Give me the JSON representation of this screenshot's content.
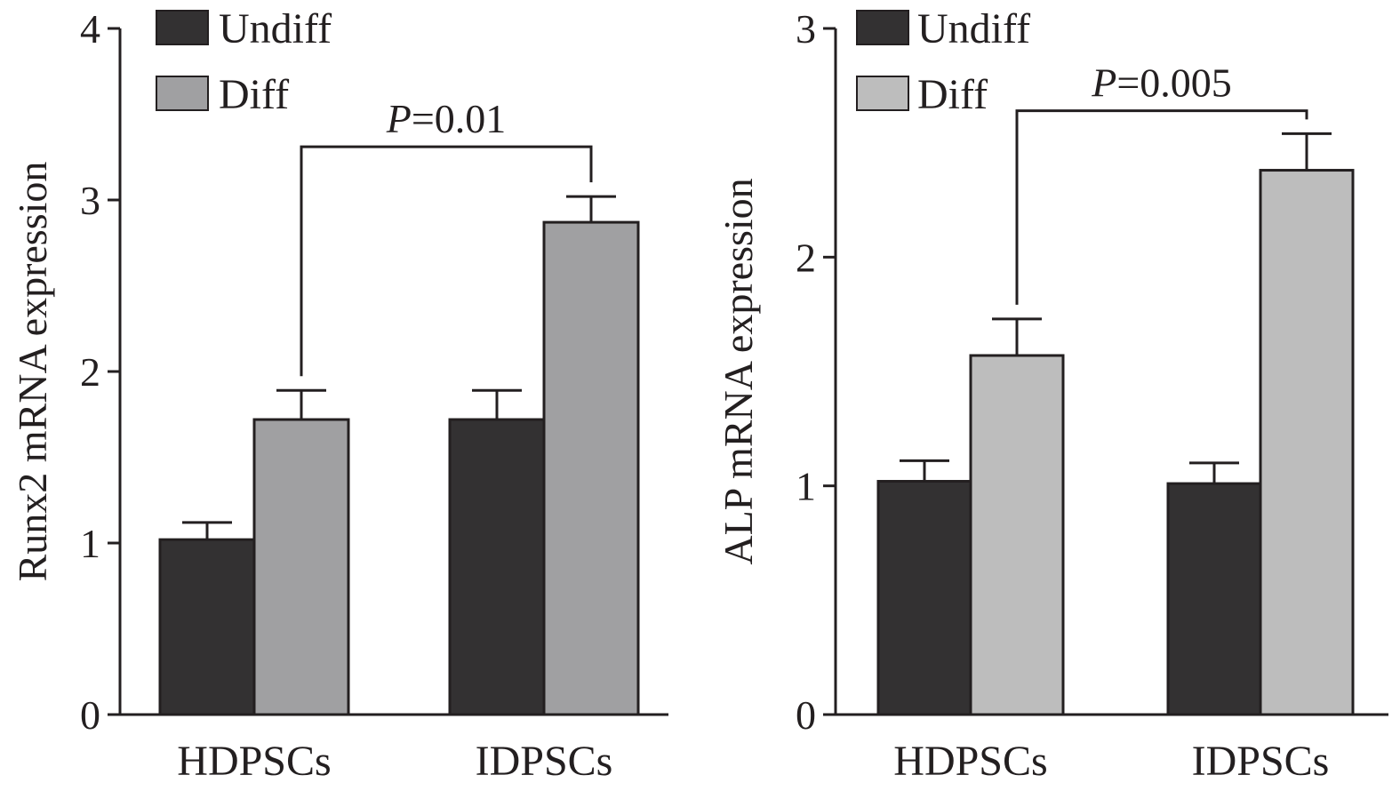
{
  "colors": {
    "undiff": "#333132",
    "diff_panel1": "#a0a0a2",
    "diff_panel2": "#bdbdbd",
    "ink": "#231f20",
    "background": "#ffffff"
  },
  "chart_data": [
    {
      "type": "bar",
      "title": "",
      "xlabel": "",
      "ylabel": "Runx2 mRNA expression",
      "ylim": [
        0,
        4
      ],
      "yticks": [
        "0",
        "1",
        "2",
        "3",
        "4"
      ],
      "categories": [
        "HDPSCs",
        "IDPSCs"
      ],
      "series": [
        {
          "name": "Undiff",
          "values": [
            1.02,
            1.72
          ],
          "errors": [
            0.1,
            0.17
          ]
        },
        {
          "name": "Diff",
          "values": [
            1.72,
            2.87
          ],
          "errors": [
            0.17,
            0.15
          ]
        }
      ],
      "legend": {
        "position": "top-left",
        "entries": [
          "Undiff",
          "Diff"
        ]
      },
      "annotation": {
        "p_symbol": "P",
        "p_value": "=0.01",
        "from": {
          "category": 0,
          "series": 1
        },
        "to": {
          "category": 1,
          "series": 1
        },
        "bracket_level": 3.31
      },
      "grid": false
    },
    {
      "type": "bar",
      "title": "",
      "xlabel": "",
      "ylabel": "ALP mRNA expression",
      "ylim": [
        0,
        3
      ],
      "yticks": [
        "0",
        "1",
        "2",
        "3"
      ],
      "categories": [
        "HDPSCs",
        "IDPSCs"
      ],
      "series": [
        {
          "name": "Undiff",
          "values": [
            1.02,
            1.01
          ],
          "errors": [
            0.09,
            0.09
          ]
        },
        {
          "name": "Diff",
          "values": [
            1.57,
            2.38
          ],
          "errors": [
            0.16,
            0.16
          ]
        }
      ],
      "legend": {
        "position": "top-left",
        "entries": [
          "Undiff",
          "Diff"
        ]
      },
      "annotation": {
        "p_symbol": "P",
        "p_value": "=0.005",
        "from": {
          "category": 0,
          "series": 1
        },
        "to": {
          "category": 1,
          "series": 1
        },
        "bracket_level": 2.64
      },
      "grid": false
    }
  ]
}
